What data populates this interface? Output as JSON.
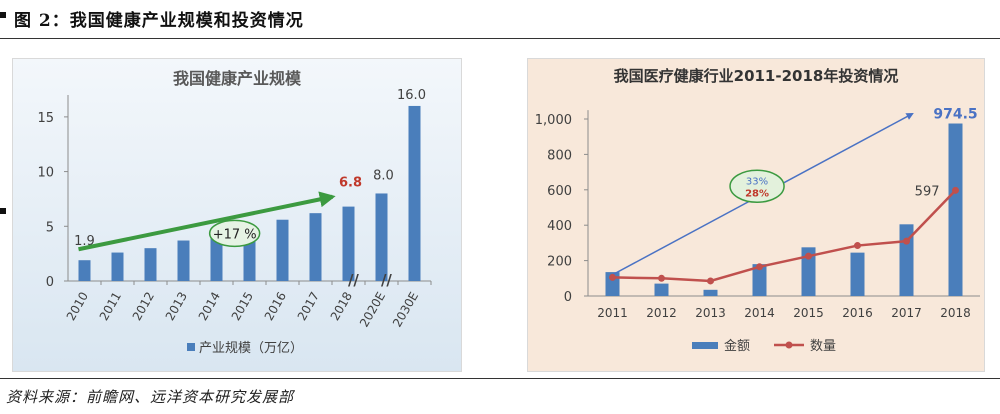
{
  "figure": {
    "title": "图 2：我国健康产业规模和投资情况",
    "source": "资料来源：前瞻网、远洋资本研究发展部"
  },
  "colors": {
    "bar": "#4a7ebb",
    "line": "#c0504d",
    "growth_arrow": "#3c9a40",
    "invest_arrow": "#4a72c4",
    "highlight": "#c0392b",
    "panel1_bg_top": "#f3f7fb",
    "panel1_bg_bottom": "#d9e6f1",
    "panel2_bg": "#f8e8da"
  },
  "chart_data": [
    {
      "type": "bar",
      "title": "我国健康产业规模",
      "categories": [
        "2010",
        "2011",
        "2012",
        "2013",
        "2014",
        "2015",
        "2016",
        "2017",
        "2018",
        "2020E",
        "2030E"
      ],
      "series": [
        {
          "name": "产业规模（万亿）",
          "values": [
            1.9,
            2.6,
            3.0,
            3.7,
            4.5,
            5.0,
            5.6,
            6.2,
            6.8,
            8.0,
            16.0
          ]
        }
      ],
      "data_labels": [
        {
          "index": 0,
          "text": "1.9"
        },
        {
          "index": 8,
          "text": "6.8"
        },
        {
          "index": 9,
          "text": "8.0"
        },
        {
          "index": 10,
          "text": "16.0"
        }
      ],
      "annotation": "+17 %",
      "axis_break_marker": "//",
      "yticks": [
        "0",
        "5",
        "10",
        "15"
      ],
      "ylim": [
        0,
        17
      ],
      "legend_position": "bottom"
    },
    {
      "type": "bar+line",
      "title": "我国医疗健康行业2011-2018年投资情况",
      "categories": [
        "2011",
        "2012",
        "2013",
        "2014",
        "2015",
        "2016",
        "2017",
        "2018"
      ],
      "series": [
        {
          "name": "金额",
          "type": "bar",
          "values": [
            135,
            70,
            35,
            180,
            275,
            245,
            405,
            974.5
          ]
        },
        {
          "name": "数量",
          "type": "line",
          "values": [
            105,
            100,
            85,
            165,
            225,
            285,
            310,
            597
          ]
        }
      ],
      "data_labels": [
        {
          "series": 0,
          "index": 7,
          "text": "974.5"
        },
        {
          "series": 1,
          "index": 7,
          "text": "597"
        }
      ],
      "annotation": {
        "top": "33%",
        "bottom": "28%"
      },
      "yticks": [
        "0",
        "200",
        "400",
        "600",
        "800",
        "1,000"
      ],
      "ylim": [
        0,
        1050
      ],
      "legend_position": "bottom"
    }
  ]
}
